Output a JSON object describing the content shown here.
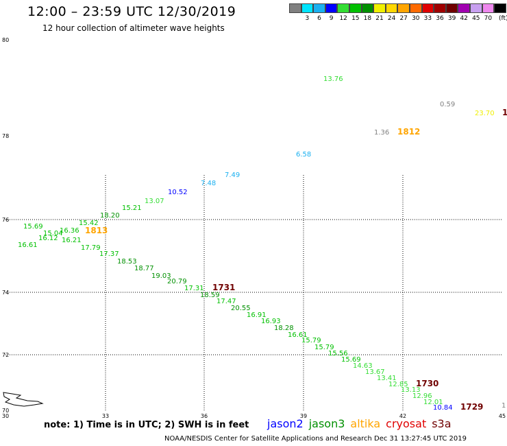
{
  "header": {
    "title": "12:00 – 23:59 UTC 12/30/2019",
    "subtitle": "12 hour collection of altimeter wave heights"
  },
  "color_scale": {
    "unit_label": "(ft)",
    "bins": [
      {
        "label": "",
        "color": "#808080"
      },
      {
        "label": "3",
        "color": "#00e5ff"
      },
      {
        "label": "6",
        "color": "#1ab0f0"
      },
      {
        "label": "9",
        "color": "#0000ff"
      },
      {
        "label": "12",
        "color": "#33dd33"
      },
      {
        "label": "15",
        "color": "#00c000"
      },
      {
        "label": "18",
        "color": "#009000"
      },
      {
        "label": "21",
        "color": "#f0f000"
      },
      {
        "label": "24",
        "color": "#ffd700"
      },
      {
        "label": "27",
        "color": "#ffa500"
      },
      {
        "label": "30",
        "color": "#ff6a00"
      },
      {
        "label": "33",
        "color": "#e00000"
      },
      {
        "label": "36",
        "color": "#a00000"
      },
      {
        "label": "39",
        "color": "#700000"
      },
      {
        "label": "42",
        "color": "#a000b0"
      },
      {
        "label": "45",
        "color": "#c8a0f0"
      },
      {
        "label": "70",
        "color": "#ee88ee"
      },
      {
        "label": "",
        "color": "#000000"
      }
    ]
  },
  "map": {
    "lon_labels": [
      "30",
      "33",
      "36",
      "39",
      "42",
      "45"
    ],
    "lat_labels": [
      "80",
      "78",
      "76",
      "74",
      "72",
      "70"
    ],
    "grid_style": "dotted",
    "wave_heights": [
      {
        "value": "13.76",
        "color": "#33dd33"
      },
      {
        "value": "0.59",
        "color": "#808080"
      },
      {
        "value": "23.70",
        "color": "#f0f000"
      },
      {
        "value": "1.36",
        "color": "#808080"
      },
      {
        "value": "6.58",
        "color": "#1ab0f0"
      },
      {
        "value": "7.49",
        "color": "#1ab0f0"
      },
      {
        "value": "7.48",
        "color": "#1ab0f0"
      },
      {
        "value": "10.52",
        "color": "#0000ff"
      },
      {
        "value": "13.07",
        "color": "#33dd33"
      },
      {
        "value": "15.21",
        "color": "#00c000"
      },
      {
        "value": "18.20",
        "color": "#009000"
      },
      {
        "value": "15.42",
        "color": "#00c000"
      },
      {
        "value": "15.69",
        "color": "#00c000"
      },
      {
        "value": "15.04",
        "color": "#00c000"
      },
      {
        "value": "16.36",
        "color": "#00c000"
      },
      {
        "value": "16.12",
        "color": "#00c000"
      },
      {
        "value": "16.21",
        "color": "#00c000"
      },
      {
        "value": "16.61",
        "color": "#00c000"
      },
      {
        "value": "17.79",
        "color": "#00c000"
      },
      {
        "value": "17.37",
        "color": "#00c000"
      },
      {
        "value": "18.53",
        "color": "#009000"
      },
      {
        "value": "18.77",
        "color": "#009000"
      },
      {
        "value": "19.03",
        "color": "#009000"
      },
      {
        "value": "20.79",
        "color": "#009000"
      },
      {
        "value": "17.31",
        "color": "#00c000"
      },
      {
        "value": "18.59",
        "color": "#009000"
      },
      {
        "value": "17.47",
        "color": "#00c000"
      },
      {
        "value": "20.55",
        "color": "#009000"
      },
      {
        "value": "16.91",
        "color": "#00c000"
      },
      {
        "value": "16.93",
        "color": "#00c000"
      },
      {
        "value": "18.28",
        "color": "#009000"
      },
      {
        "value": "16.61",
        "color": "#00c000"
      },
      {
        "value": "15.79",
        "color": "#00c000"
      },
      {
        "value": "15.79",
        "color": "#00c000"
      },
      {
        "value": "15.56",
        "color": "#00c000"
      },
      {
        "value": "15.69",
        "color": "#00c000"
      },
      {
        "value": "14.63",
        "color": "#33dd33"
      },
      {
        "value": "13.67",
        "color": "#33dd33"
      },
      {
        "value": "13.41",
        "color": "#33dd33"
      },
      {
        "value": "12.85",
        "color": "#33dd33"
      },
      {
        "value": "13.13",
        "color": "#33dd33"
      },
      {
        "value": "12.96",
        "color": "#33dd33"
      },
      {
        "value": "12.01",
        "color": "#33dd33"
      },
      {
        "value": "10.84",
        "color": "#0000ff"
      },
      {
        "value": "1",
        "color": "#808080"
      }
    ],
    "pass_times": [
      {
        "value": "1812",
        "color": "#ffa500"
      },
      {
        "value": "1",
        "color": "#700000"
      },
      {
        "value": "1813",
        "color": "#ffa500"
      },
      {
        "value": "1731",
        "color": "#700000"
      },
      {
        "value": "1730",
        "color": "#700000"
      },
      {
        "value": "1729",
        "color": "#700000"
      }
    ]
  },
  "note": "note:  1) Time is in UTC;  2) SWH is in feet",
  "legend": [
    {
      "label": "jason2",
      "color": "#0000ff"
    },
    {
      "label": "jason3",
      "color": "#009000"
    },
    {
      "label": "altika",
      "color": "#ffa500"
    },
    {
      "label": "cryosat",
      "color": "#e00000"
    },
    {
      "label": "s3a",
      "color": "#700000"
    }
  ],
  "footer": "NOAA/NESDIS Center for Satellite Applications and Research     Dec 31 13:27:45 UTC 2019"
}
